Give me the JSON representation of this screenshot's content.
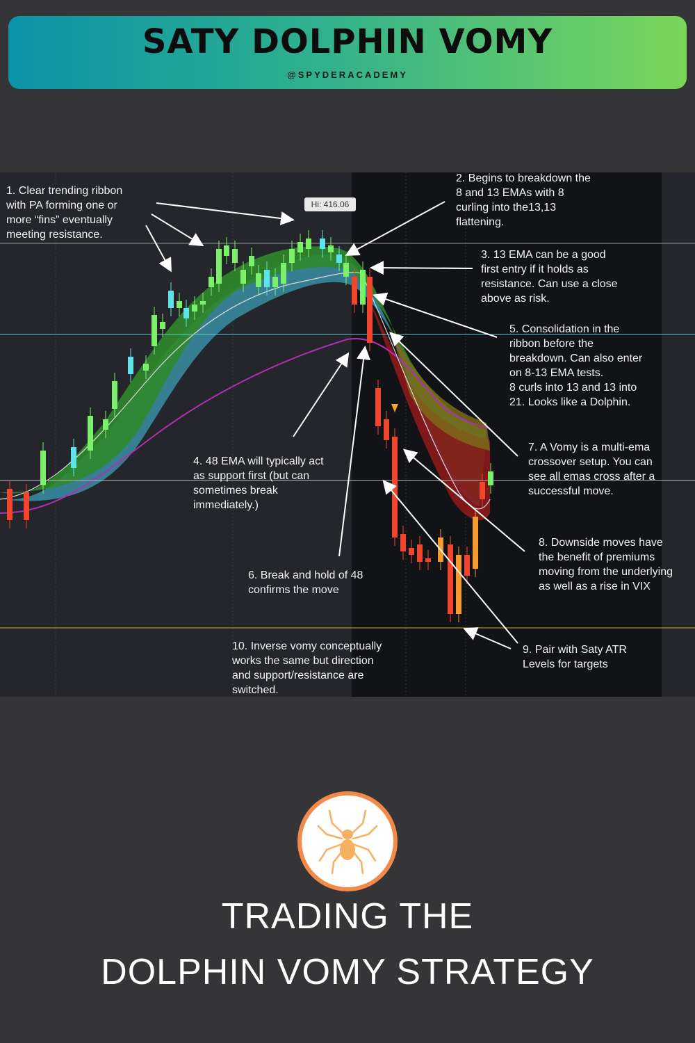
{
  "header": {
    "title": "SATY DOLPHIN VOMY",
    "handle": "@SPYDERACADEMY",
    "gradient_start": "#0b93a8",
    "gradient_end": "#7ad659"
  },
  "chart": {
    "hi_label": "Hi: 416.06",
    "colors": {
      "background": "#24262b",
      "shaded_region": "#111316",
      "bullish": "#7cf06a",
      "bullish_alt": "#5ee3e8",
      "bearish": "#f2452e",
      "bearish_alt": "#f59a2e",
      "ribbon_green": "#2f8a2c",
      "ribbon_teal": "#3a8fa4",
      "ribbon_red": "#8b1a1a",
      "ribbon_olive": "#7d6a1b",
      "ema48": "#b02fb6",
      "support_line": "#5fc7cf",
      "atr_line": "#c7a53a"
    }
  },
  "annotations": [
    "1. Clear trending ribbon\nwith PA forming one or\nmore “fins” eventually\nmeeting resistance.",
    "2. Begins to breakdown the\n8 and 13 EMAs with 8\ncurling into the13,13\nflattening.",
    "3. 13 EMA can be a good\nfirst entry if it holds as\nresistance. Can use a close\nabove as risk.",
    "4. 48 EMA will typically act\nas support first (but can\nsometimes break\nimmediately.)",
    "5. Consolidation in the\nribbon before the\nbreakdown. Can also enter\non 8-13 EMA tests.\n8 curls into 13 and 13 into\n21. Looks like a Dolphin.",
    "6. Break and hold of 48\nconfirms the move",
    "7. A Vomy is a multi-ema\ncrossover setup. You can\nsee all emas cross after a\nsuccessful move.",
    "8. Downside moves have\nthe benefit of premiums\nmoving from the underlying\nas well as a rise in VIX",
    "9. Pair with Saty ATR\nLevels for targets",
    "10. Inverse vomy conceptually\nworks the same but direction\nand support/resistance are\nswitched."
  ],
  "footer": {
    "line1": "TRADING THE",
    "line2": "DOLPHIN VOMY STRATEGY",
    "logo_icon": "spider-icon",
    "logo_ring_color": "#f28a4a",
    "spider_color": "#f6b05f"
  }
}
